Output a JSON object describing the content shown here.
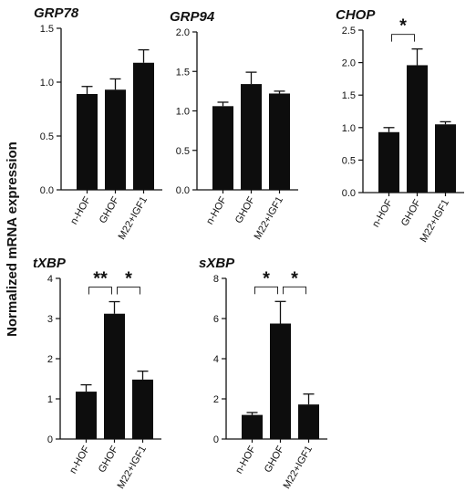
{
  "figure": {
    "ylabel": "Normalized mRNA expression"
  },
  "chart_data": [
    {
      "type": "bar",
      "title": "GRP78",
      "categories": [
        "n-HOF",
        "GHOF",
        "M22+IGF1"
      ],
      "values": [
        0.89,
        0.93,
        1.18
      ],
      "errors": [
        0.07,
        0.1,
        0.12
      ],
      "ylim": [
        0,
        1.5
      ],
      "yticks": [
        "0.0",
        "0.5",
        "1.0",
        "1.5"
      ],
      "significance": []
    },
    {
      "type": "bar",
      "title": "GRP94",
      "categories": [
        "n-HOF",
        "GHOF",
        "M22+IGF1"
      ],
      "values": [
        1.06,
        1.34,
        1.22
      ],
      "errors": [
        0.05,
        0.15,
        0.03
      ],
      "ylim": [
        0,
        2.0
      ],
      "yticks": [
        "0.0",
        "0.5",
        "1.0",
        "1.5",
        "2.0"
      ],
      "significance": []
    },
    {
      "type": "bar",
      "title": "CHOP",
      "categories": [
        "n-HOF",
        "GHOF",
        "M22+IGF1"
      ],
      "values": [
        0.93,
        1.96,
        1.05
      ],
      "errors": [
        0.07,
        0.25,
        0.04
      ],
      "ylim": [
        0,
        2.5
      ],
      "yticks": [
        "0.0",
        "0.5",
        "1.0",
        "1.5",
        "2.0",
        "2.5"
      ],
      "significance": [
        {
          "from": 0,
          "to": 1,
          "label": "*"
        }
      ]
    },
    {
      "type": "bar",
      "title": "tXBP",
      "categories": [
        "n-HOF",
        "GHOF",
        "M22+IGF1"
      ],
      "values": [
        1.18,
        3.12,
        1.48
      ],
      "errors": [
        0.17,
        0.3,
        0.21
      ],
      "ylim": [
        0,
        4
      ],
      "yticks": [
        "0",
        "1",
        "2",
        "3",
        "4"
      ],
      "significance": [
        {
          "from": 0,
          "to": 1,
          "label": "**"
        },
        {
          "from": 1,
          "to": 2,
          "label": "*"
        }
      ]
    },
    {
      "type": "bar",
      "title": "sXBP",
      "categories": [
        "n-HOF",
        "GHOF",
        "M22+IGF1"
      ],
      "values": [
        1.2,
        5.75,
        1.72
      ],
      "errors": [
        0.12,
        1.1,
        0.52
      ],
      "ylim": [
        0,
        8
      ],
      "yticks": [
        "0",
        "2",
        "4",
        "6",
        "8"
      ],
      "significance": [
        {
          "from": 0,
          "to": 1,
          "label": "*"
        },
        {
          "from": 1,
          "to": 2,
          "label": "*"
        }
      ]
    }
  ]
}
